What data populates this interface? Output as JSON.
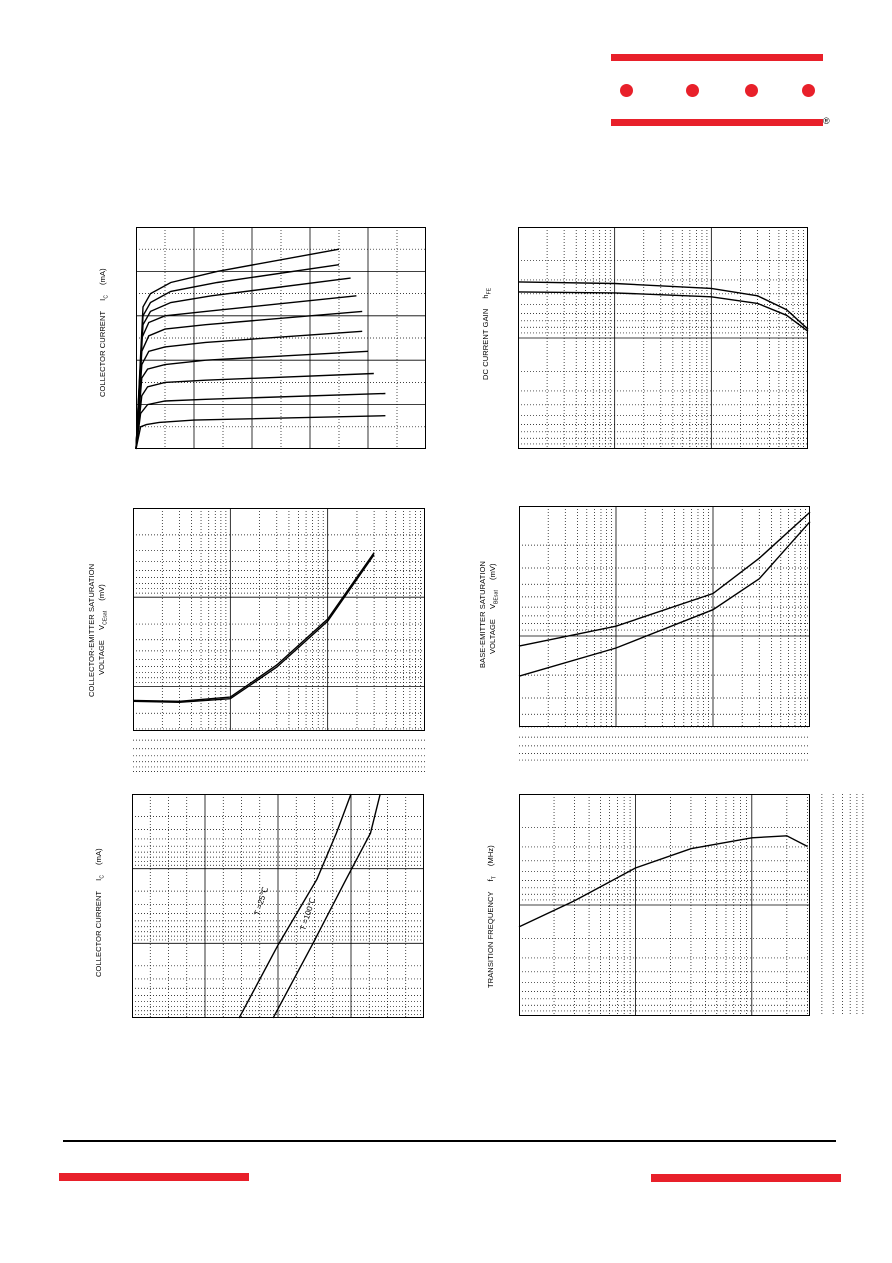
{
  "logo": {
    "registered_mark": "®"
  },
  "colors": {
    "brand_red": "#e8202a",
    "grid": "#000000",
    "curve": "#000000"
  },
  "charts": {
    "c1": {
      "ylabel": {
        "name": "COLLECTOR CURRENT",
        "sym": "I",
        "sub": "C",
        "unit": "(mA)"
      }
    },
    "c2": {
      "ylabel": {
        "name": "DC CURRENT GAIN",
        "sym": "h",
        "sub": "FE",
        "unit": ""
      }
    },
    "c3": {
      "ylabel": {
        "line1": "COLLECTOR-EMITTER SATURATION",
        "line2_a": "VOLTAGE",
        "sym": "V",
        "sub": "CEsat",
        "unit": "(mV)"
      }
    },
    "c4": {
      "ylabel": {
        "line1": "BASE-EMITTER SATURATION",
        "line2_a": "VOLTAGE",
        "sym": "V",
        "sub": "BEsat",
        "unit": "(mV)"
      }
    },
    "c5": {
      "ylabel": {
        "name": "COLLECTOR CURRENT",
        "sym": "I",
        "sub": "C",
        "unit": "(mA)"
      },
      "annotations": [
        "T =25℃",
        "T =100℃"
      ],
      "annotation_sub": "J"
    },
    "c6": {
      "ylabel": {
        "name": "TRANSITION FREQUENCY",
        "sym": "f",
        "sub": "T",
        "unit": "(MHz)"
      }
    }
  },
  "chart_data": [
    {
      "type": "line",
      "title": "",
      "xlabel": "",
      "ylabel": "COLLECTOR CURRENT I C (mA)",
      "x_scale": "linear",
      "y_scale": "linear",
      "xlim": [
        0,
        5
      ],
      "ylim": [
        0,
        5
      ],
      "grid": true,
      "series": [
        {
          "x": [
            0,
            0.08,
            0.18,
            0.4,
            1.0,
            4.3
          ],
          "y": [
            0,
            0.5,
            0.55,
            0.6,
            0.65,
            0.75
          ]
        },
        {
          "x": [
            0,
            0.08,
            0.2,
            0.5,
            1.2,
            4.3
          ],
          "y": [
            0,
            0.8,
            1.0,
            1.08,
            1.12,
            1.25
          ]
        },
        {
          "x": [
            0,
            0.1,
            0.2,
            0.5,
            1.2,
            4.1
          ],
          "y": [
            0,
            1.2,
            1.4,
            1.5,
            1.55,
            1.7
          ]
        },
        {
          "x": [
            0,
            0.1,
            0.2,
            0.5,
            1.2,
            4.0
          ],
          "y": [
            0,
            1.6,
            1.8,
            1.9,
            2.0,
            2.2
          ]
        },
        {
          "x": [
            0,
            0.1,
            0.22,
            0.5,
            1.2,
            3.9
          ],
          "y": [
            0,
            1.9,
            2.2,
            2.3,
            2.4,
            2.65
          ]
        },
        {
          "x": [
            0,
            0.1,
            0.22,
            0.5,
            1.2,
            3.9
          ],
          "y": [
            0,
            2.2,
            2.55,
            2.7,
            2.8,
            3.1
          ]
        },
        {
          "x": [
            0,
            0.1,
            0.22,
            0.5,
            1.2,
            3.8
          ],
          "y": [
            0,
            2.5,
            2.85,
            3.0,
            3.1,
            3.45
          ]
        },
        {
          "x": [
            0,
            0.12,
            0.25,
            0.6,
            1.3,
            3.7
          ],
          "y": [
            0,
            2.8,
            3.1,
            3.3,
            3.45,
            3.85
          ]
        },
        {
          "x": [
            0,
            0.12,
            0.25,
            0.6,
            1.4,
            3.5
          ],
          "y": [
            0,
            3.0,
            3.3,
            3.55,
            3.75,
            4.15
          ]
        },
        {
          "x": [
            0,
            0.12,
            0.25,
            0.6,
            1.4,
            3.5
          ],
          "y": [
            0,
            3.2,
            3.5,
            3.75,
            4.0,
            4.5
          ]
        }
      ]
    },
    {
      "type": "line",
      "title": "",
      "xlabel": "",
      "ylabel": "DC CURRENT GAIN h FE",
      "x_scale": "log",
      "y_scale": "log",
      "grid": true,
      "series": [
        {
          "x": [
            0.1,
            1,
            10,
            30,
            60,
            100
          ],
          "y": [
            320,
            310,
            280,
            240,
            180,
            120
          ]
        },
        {
          "x": [
            0.1,
            1,
            10,
            30,
            60,
            100
          ],
          "y": [
            260,
            255,
            235,
            205,
            160,
            115
          ]
        }
      ]
    },
    {
      "type": "line",
      "title": "",
      "xlabel": "",
      "ylabel": "COLLECTOR-EMITTER SATURATION VOLTAGE V CEsat (mV)",
      "x_scale": "log",
      "y_scale": "log",
      "grid": true,
      "series": [
        {
          "x": [
            0.1,
            0.3,
            1,
            3,
            10,
            30
          ],
          "y": [
            22,
            21.5,
            24,
            55,
            180,
            1000
          ]
        },
        {
          "x": [
            0.1,
            0.3,
            1,
            3,
            10,
            30
          ],
          "y": [
            21.5,
            21,
            23,
            52,
            170,
            950
          ]
        }
      ]
    },
    {
      "type": "line",
      "title": "",
      "xlabel": "",
      "ylabel": "BASE-EMITTER SATURATION VOLTAGE V BEsat (mV)",
      "x_scale": "log",
      "y_scale": "log",
      "grid": true,
      "series": [
        {
          "x": [
            0.1,
            1,
            10,
            30,
            100
          ],
          "y": [
            520,
            640,
            900,
            1300,
            2100
          ]
        },
        {
          "x": [
            0.1,
            1,
            10,
            30,
            100
          ],
          "y": [
            380,
            510,
            760,
            1050,
            1900
          ]
        }
      ]
    },
    {
      "type": "line",
      "title": "",
      "xlabel": "",
      "ylabel": "COLLECTOR CURRENT I C (mA)",
      "x_scale": "linear",
      "y_scale": "log",
      "grid": true,
      "series": [
        {
          "name": "T J=25℃",
          "x": [
            0.42,
            0.5,
            0.58,
            0.62,
            0.65
          ],
          "y": [
            0.01,
            0.2,
            3,
            20,
            100
          ]
        },
        {
          "name": "T J=100℃",
          "x": [
            0.49,
            0.57,
            0.64,
            0.69,
            0.71
          ],
          "y": [
            0.01,
            0.2,
            3,
            20,
            100
          ]
        }
      ]
    },
    {
      "type": "line",
      "title": "",
      "xlabel": "",
      "ylabel": "TRANSITION FREQUENCY f T (MHz)",
      "x_scale": "log",
      "y_scale": "log",
      "grid": true,
      "series": [
        {
          "x": [
            0.1,
            0.3,
            1,
            3,
            10,
            20,
            30
          ],
          "y": [
            40,
            60,
            100,
            135,
            160,
            165,
            140
          ]
        }
      ]
    }
  ]
}
